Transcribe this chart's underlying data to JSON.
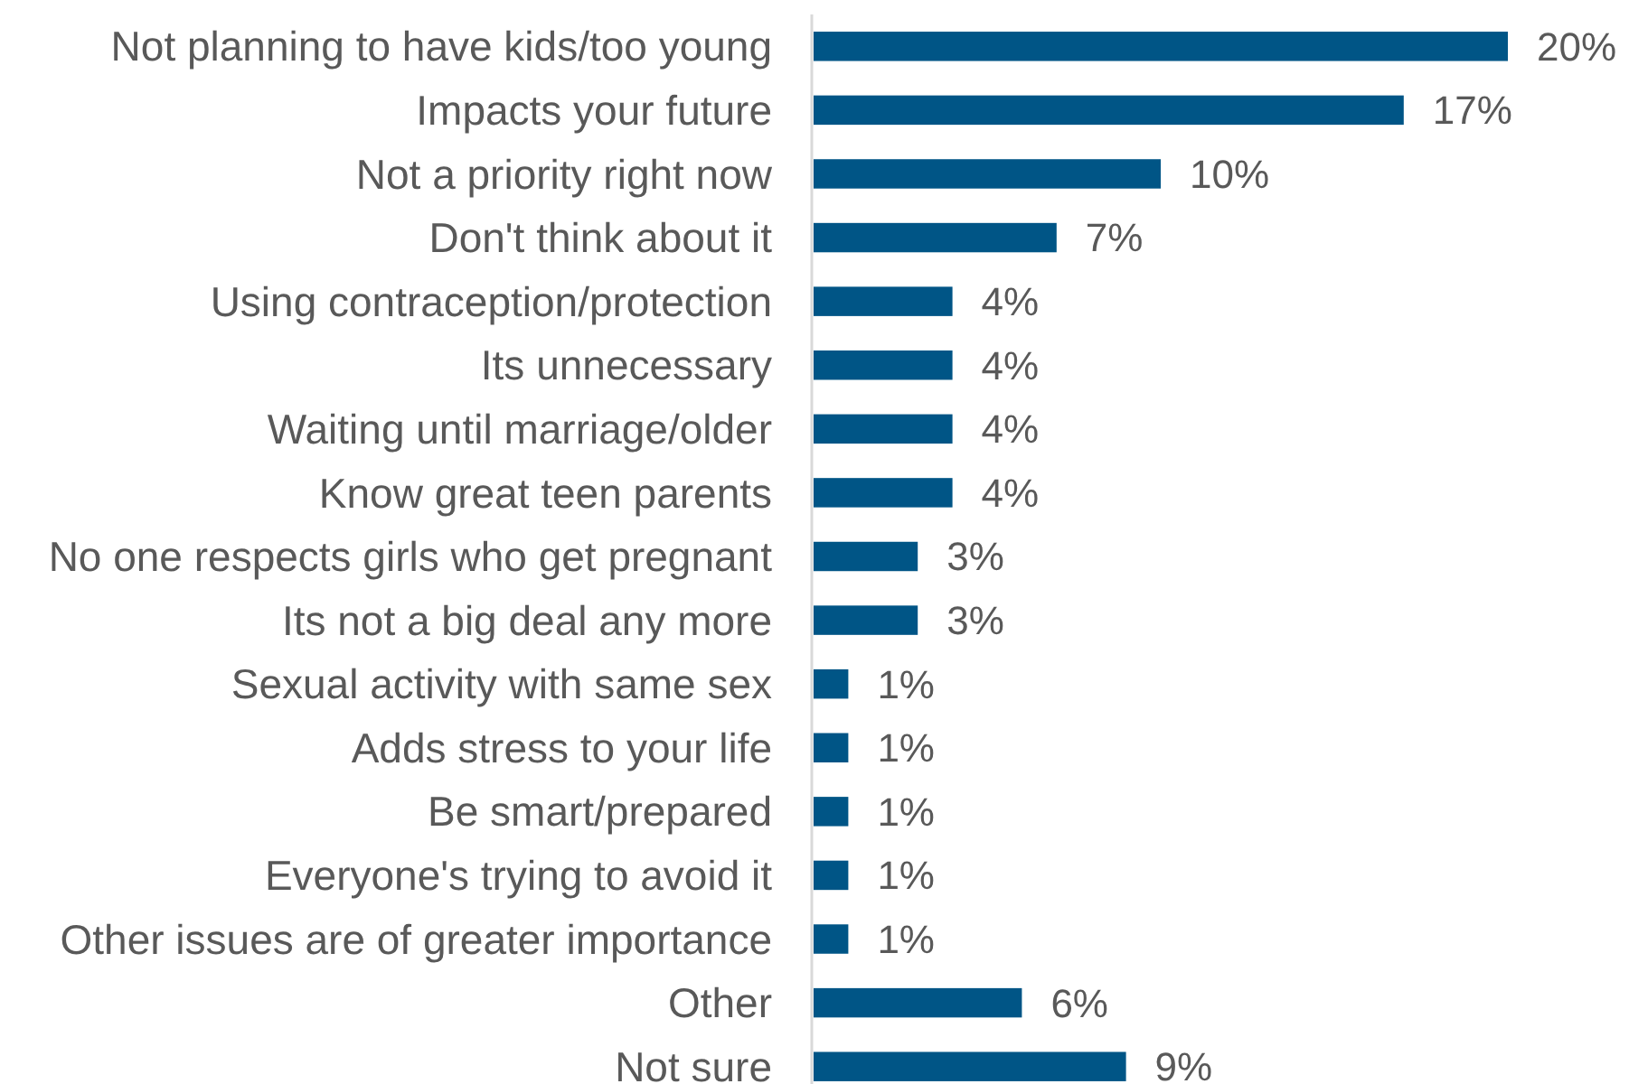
{
  "chart_data": {
    "type": "bar",
    "orientation": "horizontal",
    "categories": [
      "Not planning to have kids/too young",
      "Impacts your future",
      "Not a priority right now",
      "Don't think about it",
      "Using contraception/protection",
      "Its unnecessary",
      "Waiting until marriage/older",
      "Know great teen parents",
      "No one respects girls who get pregnant",
      "Its not a big deal any more",
      "Sexual activity with same sex",
      "Adds stress to your life",
      "Be smart/prepared",
      "Everyone's trying to avoid it",
      "Other issues are of greater importance",
      "Other",
      "Not sure"
    ],
    "values": [
      20,
      17,
      10,
      7,
      4,
      4,
      4,
      4,
      3,
      3,
      1,
      1,
      1,
      1,
      1,
      6,
      9
    ],
    "value_labels": [
      "20%",
      "17%",
      "10%",
      "7%",
      "4%",
      "4%",
      "4%",
      "4%",
      "3%",
      "3%",
      "1%",
      "1%",
      "1%",
      "1%",
      "1%",
      "6%",
      "9%"
    ],
    "color": "#005586",
    "tick_labels": "y"
  }
}
